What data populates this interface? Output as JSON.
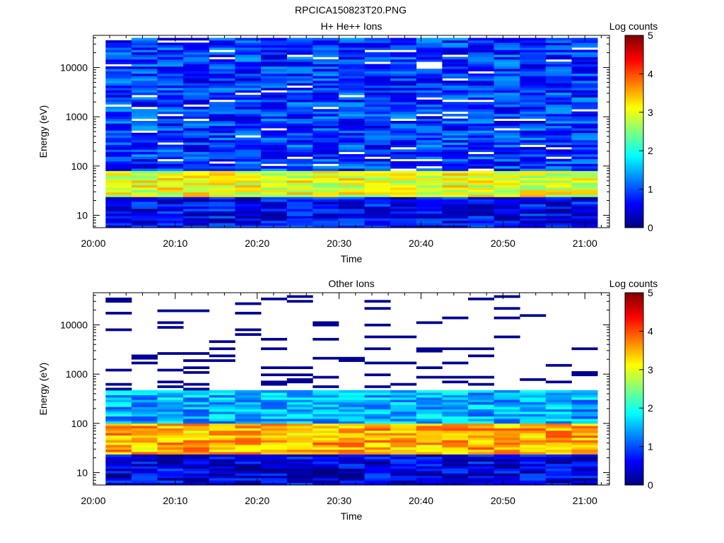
{
  "figure": {
    "title": "RPCICA150823T20.PNG"
  },
  "colors": {
    "scale": [
      "#00007f",
      "#0000ff",
      "#007fff",
      "#00ffff",
      "#7fff7f",
      "#ffff00",
      "#ff7f00",
      "#ff0000",
      "#7f0000"
    ],
    "axis": "#000000",
    "background": "#ffffff"
  },
  "chart_data": [
    {
      "type": "heatmap",
      "title": "H+ He++ Ions",
      "xlabel": "Time",
      "ylabel": "Energy (eV)",
      "yscale": "log",
      "ylim": [
        5.6,
        45000
      ],
      "xlim": [
        "20:00",
        "21:03"
      ],
      "x_ticks": [
        "20:00",
        "20:10",
        "20:20",
        "20:30",
        "20:40",
        "20:50",
        "21:00"
      ],
      "y_ticks": [
        "10",
        "100",
        "1000",
        "10000"
      ],
      "colorbar": {
        "label": "Log counts",
        "min": 0,
        "max": 5,
        "ticks": [
          "0",
          "1",
          "2",
          "3",
          "4",
          "5"
        ]
      },
      "time_bins": 19,
      "time_start_min": 1.5,
      "time_step_min": 3.16,
      "energy_range": [
        5.6,
        40000
      ],
      "approx_profile": [
        {
          "energy_range_eV": [
            5.6,
            25
          ],
          "log_counts": 0.6
        },
        {
          "energy_range_eV": [
            25,
            80
          ],
          "log_counts": 3.0
        },
        {
          "energy_range_eV": [
            80,
            40000
          ],
          "log_counts": 0.9
        }
      ]
    },
    {
      "type": "heatmap",
      "title": "Other Ions",
      "xlabel": "Time",
      "ylabel": "Energy (eV)",
      "yscale": "log",
      "ylim": [
        5.6,
        45000
      ],
      "xlim": [
        "20:00",
        "21:03"
      ],
      "x_ticks": [
        "20:00",
        "20:10",
        "20:20",
        "20:30",
        "20:40",
        "20:50",
        "21:00"
      ],
      "y_ticks": [
        "10",
        "100",
        "1000",
        "10000"
      ],
      "colorbar": {
        "label": "Log counts",
        "min": 0,
        "max": 5,
        "ticks": [
          "0",
          "1",
          "2",
          "3",
          "4",
          "5"
        ]
      },
      "time_bins": 19,
      "time_start_min": 1.5,
      "time_step_min": 3.16,
      "energy_range": [
        5.6,
        40000
      ],
      "approx_profile": [
        {
          "energy_range_eV": [
            5.6,
            25
          ],
          "log_counts": 0.5
        },
        {
          "energy_range_eV": [
            25,
            100
          ],
          "log_counts": 3.5
        },
        {
          "energy_range_eV": [
            100,
            500
          ],
          "log_counts": 1.5
        },
        {
          "energy_range_eV": [
            500,
            40000
          ],
          "log_counts": 0.1
        }
      ]
    }
  ]
}
